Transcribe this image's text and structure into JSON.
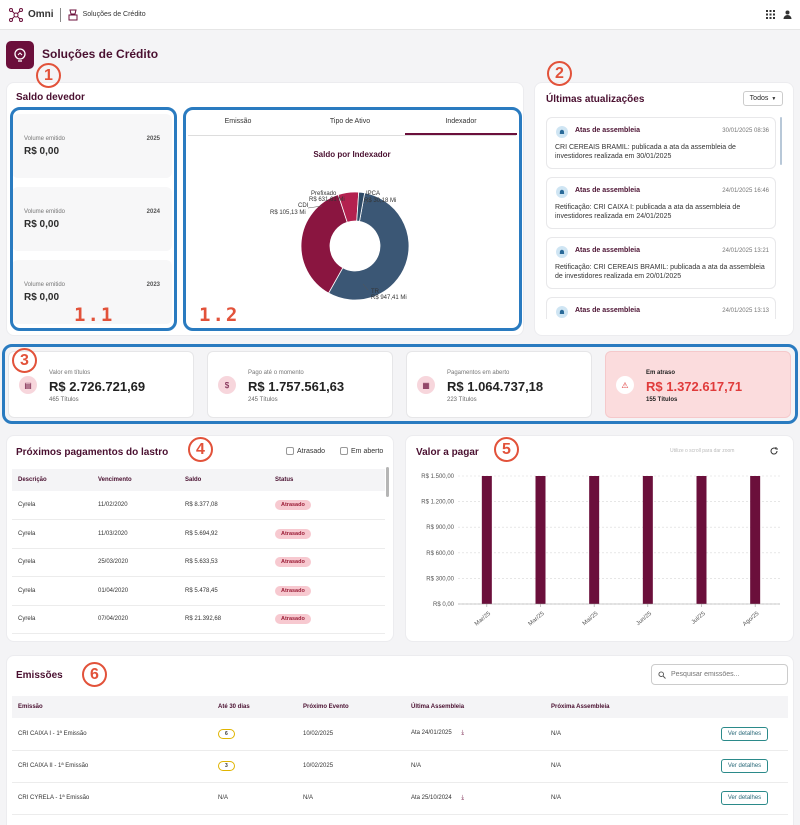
{
  "app": {
    "brand": "Omni",
    "section": "Soluções de Crédito"
  },
  "page": {
    "title": "Soluções de Crédito"
  },
  "markers": {
    "m1": "1",
    "m11": "1.1",
    "m12": "1.2",
    "m2": "2",
    "m3": "3",
    "m4": "4",
    "m5": "5",
    "m6": "6"
  },
  "saldo": {
    "title": "Saldo devedor",
    "items": [
      {
        "label": "Volume emitido",
        "value": "R$ 0,00",
        "year": "2025"
      },
      {
        "label": "Volume emitido",
        "value": "R$ 0,00",
        "year": "2024"
      },
      {
        "label": "Volume emitido",
        "value": "R$ 0,00",
        "year": "2023"
      }
    ]
  },
  "tabs": [
    "Emissão",
    "Tipo de Ativo",
    "Indexador"
  ],
  "donut": {
    "title": "Saldo por Indexador",
    "labels": [
      {
        "name": "Prefixado",
        "value": "R$ 631,61 Mi"
      },
      {
        "name": "CDI",
        "value": "R$ 105,13 Mi"
      },
      {
        "name": "IPCA",
        "value": "R$ 30,18 Mi"
      },
      {
        "name": "TR",
        "value": "R$ 947,41 Mi"
      }
    ]
  },
  "chart_data": [
    {
      "type": "pie",
      "title": "Saldo por Indexador",
      "categories": [
        "TR",
        "Prefixado",
        "CDI",
        "IPCA"
      ],
      "values": [
        947.41,
        631.61,
        105.13,
        30.18
      ],
      "unit": "R$ Mi",
      "colors": [
        "#3b5775",
        "#8a1540",
        "#b3214f",
        "#2e4a66"
      ]
    },
    {
      "type": "bar",
      "title": "Valor a pagar",
      "categories": [
        "Mar/25",
        "Mar/25",
        "Mai/25",
        "Jun/25",
        "Jul/25",
        "Ago/25"
      ],
      "values": [
        1500,
        1500,
        1500,
        1500,
        1500,
        1500
      ],
      "ylim": [
        0,
        1500
      ],
      "yticks": [
        "R$ 0,00",
        "R$ 300,00",
        "R$ 600,00",
        "R$ 900,00",
        "R$ 1.200,00",
        "R$ 1.500,00"
      ]
    }
  ],
  "updates": {
    "title": "Últimas atualizações",
    "filter": "Todos",
    "items": [
      {
        "category": "Atas de assembleia",
        "date": "30/01/2025 08:36",
        "text": "CRI CEREAIS BRAMIL: publicada a ata da assembleia de investidores realizada em 30/01/2025"
      },
      {
        "category": "Atas de assembleia",
        "date": "24/01/2025 16:46",
        "text": "Retificação: CRI CAIXA I: publicada a ata da assembleia de investidores realizada em 24/01/2025"
      },
      {
        "category": "Atas de assembleia",
        "date": "24/01/2025 13:21",
        "text": "Retificação: CRI CEREAIS BRAMIL: publicada a ata da assembleia de investidores realizada em 20/01/2025"
      },
      {
        "category": "Atas de assembleia",
        "date": "24/01/2025 13:13",
        "text": ""
      }
    ]
  },
  "kpis": [
    {
      "label": "Valor em títulos",
      "value": "R$ 2.726.721,69",
      "sub": "465 Títulos",
      "icon": "document-icon"
    },
    {
      "label": "Pago até o momento",
      "value": "R$ 1.757.561,63",
      "sub": "245 Títulos",
      "icon": "money-icon"
    },
    {
      "label": "Pagamentos em aberto",
      "value": "R$ 1.064.737,18",
      "sub": "223 Títulos",
      "icon": "invoice-icon"
    },
    {
      "label": "Em atraso",
      "value": "R$ 1.372.617,71",
      "sub": "155 Títulos",
      "icon": "warning-icon"
    }
  ],
  "pagamentos": {
    "title": "Próximos pagamentos do lastro",
    "filters": [
      "Atrasado",
      "Em aberto"
    ],
    "headers": [
      "Descrição",
      "Vencimento",
      "Saldo",
      "Status"
    ],
    "rows": [
      [
        "Cyrela",
        "11/02/2020",
        "R$ 8.377,08",
        "Atrasado"
      ],
      [
        "Cyrela",
        "11/03/2020",
        "R$ 5.694,92",
        "Atrasado"
      ],
      [
        "Cyrela",
        "25/03/2020",
        "R$ 5.633,53",
        "Atrasado"
      ],
      [
        "Cyrela",
        "01/04/2020",
        "R$ 5.478,45",
        "Atrasado"
      ],
      [
        "Cyrela",
        "07/04/2020",
        "R$ 21.392,68",
        "Atrasado"
      ]
    ]
  },
  "valor": {
    "title": "Valor a pagar",
    "hint": "Utilize o scroll para dar zoom"
  },
  "emissoes": {
    "title": "Emissões",
    "search_placeholder": "Pesquisar emissões...",
    "headers": [
      "Emissão",
      "Até 30 dias",
      "Próximo Evento",
      "Última Assembleia",
      "Próxima Assembleia",
      ""
    ],
    "rows": [
      {
        "name": "CRI CAIXA I - 1ª Emissão",
        "days": "6",
        "next": "10/02/2025",
        "last": "Ata 24/01/2025",
        "nextA": "N/A",
        "btn": "Ver detalhes"
      },
      {
        "name": "CRI CAIXA II - 1ª Emissão",
        "days": "3",
        "next": "10/02/2025",
        "last": "N/A",
        "nextA": "N/A",
        "btn": "Ver detalhes"
      },
      {
        "name": "CRI CYRELA - 1ª Emissão",
        "days": "N/A",
        "next": "N/A",
        "last": "Ata 25/10/2024",
        "nextA": "N/A",
        "btn": "Ver detalhes"
      }
    ]
  }
}
